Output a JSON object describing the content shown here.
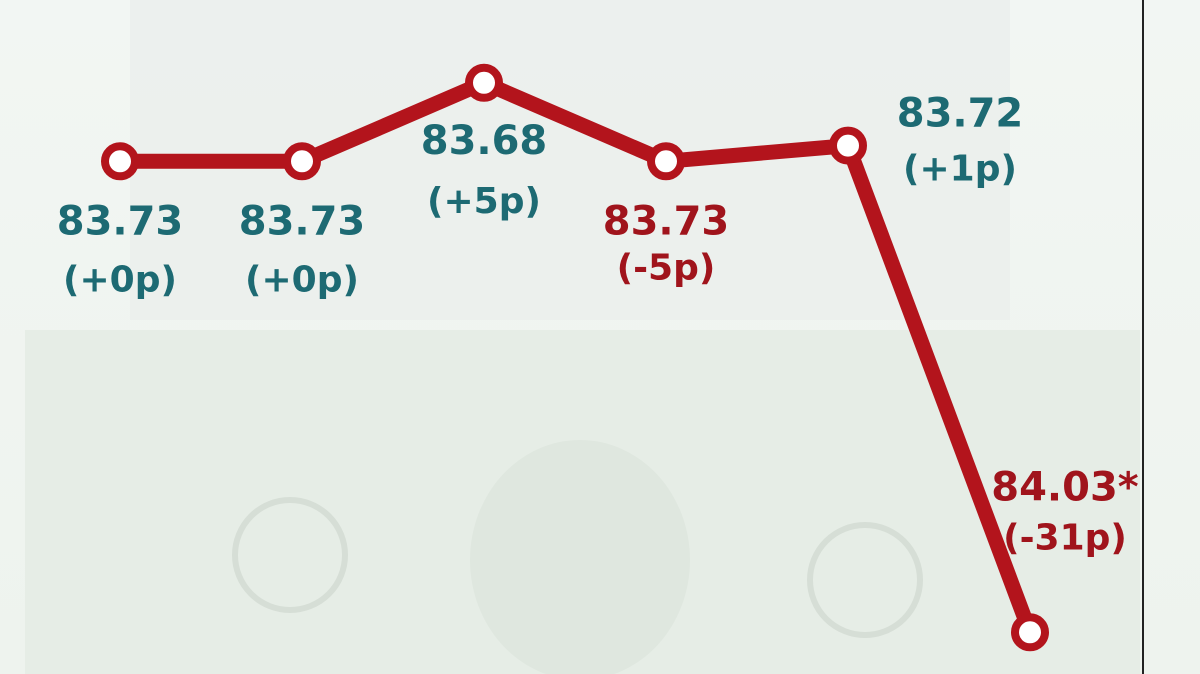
{
  "chart_data": {
    "type": "line",
    "categories": [
      null,
      null,
      null,
      null,
      null,
      null
    ],
    "series": [
      {
        "color": "#b3141c",
        "values": [
          83.73,
          83.73,
          83.68,
          83.73,
          83.72,
          84.03
        ],
        "value_labels": [
          "83.73",
          "83.73",
          "83.68",
          "83.73",
          "83.72",
          "84.03*"
        ],
        "changes": [
          0,
          0,
          5,
          -5,
          1,
          -31
        ],
        "change_labels": [
          "(+0p)",
          "(+0p)",
          "(+5p)",
          "(-5p)",
          "(+1p)",
          "(-31p)"
        ],
        "label_colors": [
          "#1d6a73",
          "#1d6a73",
          "#1d6a73",
          "#a0141c",
          "#1d6a73",
          "#a0141c"
        ]
      }
    ],
    "ylim": [
      84.04,
      83.64
    ]
  }
}
